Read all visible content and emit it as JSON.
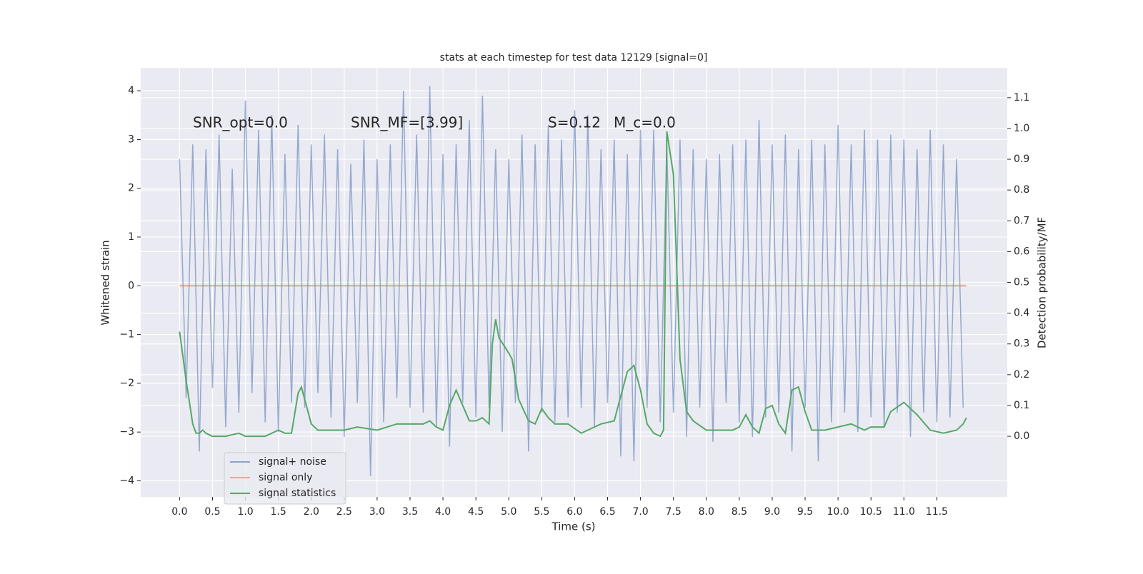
{
  "chart_data": {
    "type": "line",
    "title": "stats at each timestep for test data 12129 [signal=0]",
    "xlabel": "Time (s)",
    "ylabel": "Whitened strain",
    "y2label": "Detection probability/MF",
    "annotations": [
      "SNR_opt=0.0",
      "SNR_MF=[3.99]",
      "S=0.12",
      "M_c=0.0"
    ],
    "xlim": [
      -0.59,
      12.57
    ],
    "ylim": [
      -4.33,
      4.47
    ],
    "y2lim": [
      -0.197,
      1.197
    ],
    "xticks": [
      {
        "value": 0,
        "label": "0.0"
      },
      0.5,
      {
        "value": 1,
        "label": "1.0"
      },
      1.5,
      {
        "value": 2,
        "label": "2.0"
      },
      2.5,
      {
        "value": 3,
        "label": "3.0"
      },
      3.5,
      {
        "value": 4,
        "label": "4.0"
      },
      4.5,
      {
        "value": 5,
        "label": "5.0"
      },
      5.5,
      {
        "value": 6,
        "label": "6.0"
      },
      6.5,
      {
        "value": 7,
        "label": "7.0"
      },
      7.5,
      {
        "value": 8,
        "label": "8.0"
      },
      8.5,
      {
        "value": 9,
        "label": "9.0"
      },
      9.5,
      {
        "value": 10,
        "label": "10.0"
      },
      10.5,
      {
        "value": 11,
        "label": "11.0"
      },
      11.5
    ],
    "yticks": [
      {
        "value": -4,
        "label": "−4"
      },
      {
        "value": -3,
        "label": "−3"
      },
      {
        "value": -2,
        "label": "−2"
      },
      {
        "value": -1,
        "label": "−1"
      },
      0,
      1,
      2,
      3,
      4
    ],
    "y2ticks": [
      {
        "value": 0,
        "label": "0.0"
      },
      0.1,
      0.2,
      0.3,
      0.4,
      0.5,
      0.6,
      0.7,
      0.8,
      0.9,
      {
        "value": 1,
        "label": "1.0"
      },
      1.1
    ],
    "grid": true,
    "legend": "lower left",
    "series": [
      {
        "name": "signal+ noise",
        "color": "#4c72b0",
        "x": [
          0,
          0.1,
          0.2,
          0.3,
          0.4,
          0.5,
          0.6,
          0.7,
          0.8,
          0.9,
          1,
          1.1,
          1.2,
          1.3,
          1.4,
          1.5,
          1.6,
          1.7,
          1.8,
          1.9,
          2,
          2.1,
          2.2,
          2.3,
          2.4,
          2.5,
          2.6,
          2.7,
          2.8,
          2.9,
          3,
          3.1,
          3.2,
          3.3,
          3.4,
          3.5,
          3.6,
          3.7,
          3.8,
          3.9,
          4,
          4.1,
          4.2,
          4.3,
          4.4,
          4.5,
          4.6,
          4.7,
          4.8,
          4.9,
          5,
          5.1,
          5.2,
          5.3,
          5.4,
          5.5,
          5.6,
          5.7,
          5.8,
          5.9,
          6,
          6.1,
          6.2,
          6.3,
          6.4,
          6.5,
          6.6,
          6.7,
          6.8,
          6.9,
          7,
          7.1,
          7.2,
          7.3,
          7.4,
          7.5,
          7.6,
          7.7,
          7.8,
          7.9,
          8,
          8.1,
          8.2,
          8.3,
          8.4,
          8.5,
          8.6,
          8.7,
          8.8,
          8.9,
          9,
          9.1,
          9.2,
          9.3,
          9.4,
          9.5,
          9.6,
          9.7,
          9.8,
          9.9,
          10,
          10.1,
          10.2,
          10.3,
          10.4,
          10.5,
          10.6,
          10.7,
          10.8,
          10.9,
          11,
          11.1,
          11.2,
          11.3,
          11.4,
          11.5,
          11.6,
          11.7,
          11.8,
          11.9
        ],
        "values": [
          2.6,
          -2.3,
          2.9,
          -3.4,
          2.8,
          -2.1,
          3.1,
          -2.9,
          2.4,
          -2.6,
          3.8,
          -2.2,
          3.2,
          -2.8,
          3.5,
          -3.0,
          2.7,
          -2.4,
          3.3,
          -2.5,
          2.9,
          -2.2,
          3.1,
          -2.7,
          2.8,
          -3.1,
          2.5,
          -2.4,
          3.0,
          -3.9,
          2.6,
          -2.8,
          2.9,
          -2.3,
          4.0,
          -2.5,
          3.1,
          -2.6,
          4.1,
          -2.9,
          2.7,
          -3.3,
          2.9,
          -2.4,
          3.4,
          -2.7,
          3.9,
          -2.5,
          2.8,
          -3.0,
          2.6,
          -2.4,
          3.1,
          -3.4,
          2.9,
          -2.6,
          3.3,
          -2.8,
          3.0,
          -2.7,
          3.6,
          -2.5,
          3.5,
          -2.9,
          2.8,
          -2.4,
          3.0,
          -3.5,
          2.7,
          -3.6,
          3.2,
          -2.5,
          3.2,
          -2.8,
          2.9,
          -2.6,
          3.0,
          -3.1,
          2.8,
          -2.5,
          2.6,
          -3.2,
          2.7,
          -2.4,
          2.9,
          -2.8,
          3.0,
          -3.1,
          3.4,
          -2.7,
          2.9,
          -2.6,
          3.1,
          -3.4,
          2.8,
          -2.5,
          3.0,
          -3.6,
          2.9,
          -2.8,
          3.3,
          -2.6,
          2.9,
          -3.0,
          3.2,
          -2.7,
          3.0,
          -2.9,
          3.1,
          -2.6,
          3.0,
          -3.1,
          2.8,
          -2.6,
          3.2,
          -2.8,
          2.9,
          -2.7,
          2.6,
          -2.5
        ]
      },
      {
        "name": "signal only",
        "color": "#dd8452",
        "x": [
          0,
          11.95
        ],
        "values": [
          0,
          0
        ]
      },
      {
        "name": "signal statistics",
        "color": "#55a868",
        "axis": "y2",
        "x": [
          0,
          0.1,
          0.2,
          0.25,
          0.3,
          0.35,
          0.4,
          0.5,
          0.7,
          0.9,
          1,
          1.3,
          1.5,
          1.6,
          1.7,
          1.8,
          1.85,
          1.9,
          2,
          2.1,
          2.3,
          2.5,
          2.7,
          3,
          3.3,
          3.5,
          3.7,
          3.8,
          3.9,
          4,
          4.1,
          4.2,
          4.3,
          4.4,
          4.5,
          4.6,
          4.7,
          4.75,
          4.8,
          4.85,
          5,
          5.05,
          5.15,
          5.3,
          5.4,
          5.5,
          5.6,
          5.7,
          5.9,
          6.1,
          6.3,
          6.4,
          6.6,
          6.8,
          6.9,
          7,
          7.1,
          7.2,
          7.3,
          7.35,
          7.4,
          7.5,
          7.6,
          7.7,
          7.8,
          8,
          8.2,
          8.4,
          8.5,
          8.6,
          8.7,
          8.8,
          8.9,
          9,
          9.1,
          9.2,
          9.3,
          9.4,
          9.5,
          9.6,
          9.8,
          10,
          10.2,
          10.4,
          10.5,
          10.7,
          10.8,
          11,
          11.1,
          11.2,
          11.4,
          11.6,
          11.8,
          11.9,
          11.95
        ],
        "values": [
          0.34,
          0.18,
          0.04,
          0.01,
          0.01,
          0.02,
          0.01,
          0.0,
          0.0,
          0.01,
          0.0,
          0.0,
          0.02,
          0.01,
          0.01,
          0.14,
          0.16,
          0.12,
          0.04,
          0.02,
          0.02,
          0.02,
          0.03,
          0.02,
          0.04,
          0.04,
          0.04,
          0.05,
          0.03,
          0.02,
          0.1,
          0.15,
          0.1,
          0.05,
          0.05,
          0.06,
          0.04,
          0.3,
          0.38,
          0.32,
          0.27,
          0.25,
          0.12,
          0.05,
          0.04,
          0.09,
          0.06,
          0.04,
          0.04,
          0.01,
          0.03,
          0.04,
          0.05,
          0.21,
          0.23,
          0.15,
          0.04,
          0.01,
          0.0,
          0.02,
          0.99,
          0.85,
          0.25,
          0.08,
          0.05,
          0.02,
          0.02,
          0.02,
          0.03,
          0.07,
          0.03,
          0.01,
          0.09,
          0.1,
          0.04,
          0.01,
          0.15,
          0.16,
          0.08,
          0.02,
          0.02,
          0.03,
          0.04,
          0.02,
          0.03,
          0.03,
          0.08,
          0.11,
          0.09,
          0.07,
          0.02,
          0.01,
          0.02,
          0.04,
          0.06
        ]
      }
    ]
  }
}
